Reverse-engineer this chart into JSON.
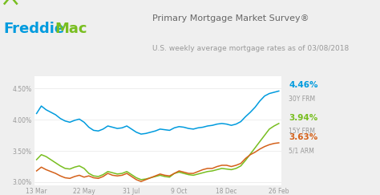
{
  "title": "Primary Mortgage Market Survey®",
  "subtitle": "U.S. weekly average mortgage rates as of 03/08/2018",
  "freddie_blue": "#009BDE",
  "freddie_green": "#78BE20",
  "bg_color": "#efefef",
  "chart_bg": "#ffffff",
  "line_30y_color": "#009BDE",
  "line_15y_color": "#78BE20",
  "line_51arm_color": "#d4611a",
  "label_30y": "4.46%",
  "label_30y_sub": "30Y FRM",
  "label_15y": "3.94%",
  "label_15y_sub": "15Y FRM",
  "label_51arm": "3.63%",
  "label_51arm_sub": "5/1 ARM",
  "ylim": [
    2.95,
    4.7
  ],
  "yticks": [
    3.0,
    3.5,
    4.0,
    4.5
  ],
  "ytick_labels": [
    "3.00%",
    "3.50%",
    "4.00%",
    "4.50%"
  ],
  "xtick_labels": [
    "13 Mar",
    "22 May",
    "31 Jul",
    "9 Oct",
    "18 Dec",
    "26 Feb"
  ],
  "n_points": 52,
  "30y_frm": [
    4.1,
    4.22,
    4.16,
    4.12,
    4.08,
    4.02,
    3.98,
    3.96,
    3.99,
    4.01,
    3.96,
    3.88,
    3.83,
    3.82,
    3.85,
    3.9,
    3.88,
    3.86,
    3.87,
    3.9,
    3.85,
    3.8,
    3.77,
    3.78,
    3.8,
    3.82,
    3.85,
    3.84,
    3.83,
    3.87,
    3.89,
    3.88,
    3.86,
    3.85,
    3.87,
    3.88,
    3.9,
    3.91,
    3.93,
    3.94,
    3.93,
    3.91,
    3.93,
    3.97,
    4.05,
    4.12,
    4.2,
    4.3,
    4.38,
    4.42,
    4.44,
    4.46
  ],
  "15y_frm": [
    3.36,
    3.44,
    3.41,
    3.36,
    3.31,
    3.26,
    3.22,
    3.21,
    3.24,
    3.26,
    3.22,
    3.14,
    3.1,
    3.09,
    3.12,
    3.17,
    3.15,
    3.13,
    3.14,
    3.17,
    3.12,
    3.07,
    3.04,
    3.05,
    3.07,
    3.09,
    3.11,
    3.09,
    3.08,
    3.14,
    3.16,
    3.14,
    3.12,
    3.11,
    3.13,
    3.15,
    3.17,
    3.18,
    3.2,
    3.22,
    3.21,
    3.2,
    3.22,
    3.26,
    3.35,
    3.45,
    3.55,
    3.65,
    3.75,
    3.85,
    3.9,
    3.94
  ],
  "51arm": [
    3.18,
    3.24,
    3.2,
    3.17,
    3.14,
    3.1,
    3.07,
    3.06,
    3.09,
    3.11,
    3.08,
    3.1,
    3.07,
    3.06,
    3.09,
    3.14,
    3.11,
    3.1,
    3.11,
    3.14,
    3.09,
    3.04,
    3.01,
    3.04,
    3.07,
    3.1,
    3.13,
    3.11,
    3.1,
    3.14,
    3.18,
    3.16,
    3.14,
    3.14,
    3.17,
    3.2,
    3.22,
    3.22,
    3.25,
    3.27,
    3.27,
    3.25,
    3.27,
    3.3,
    3.38,
    3.44,
    3.48,
    3.53,
    3.57,
    3.6,
    3.62,
    3.63
  ]
}
